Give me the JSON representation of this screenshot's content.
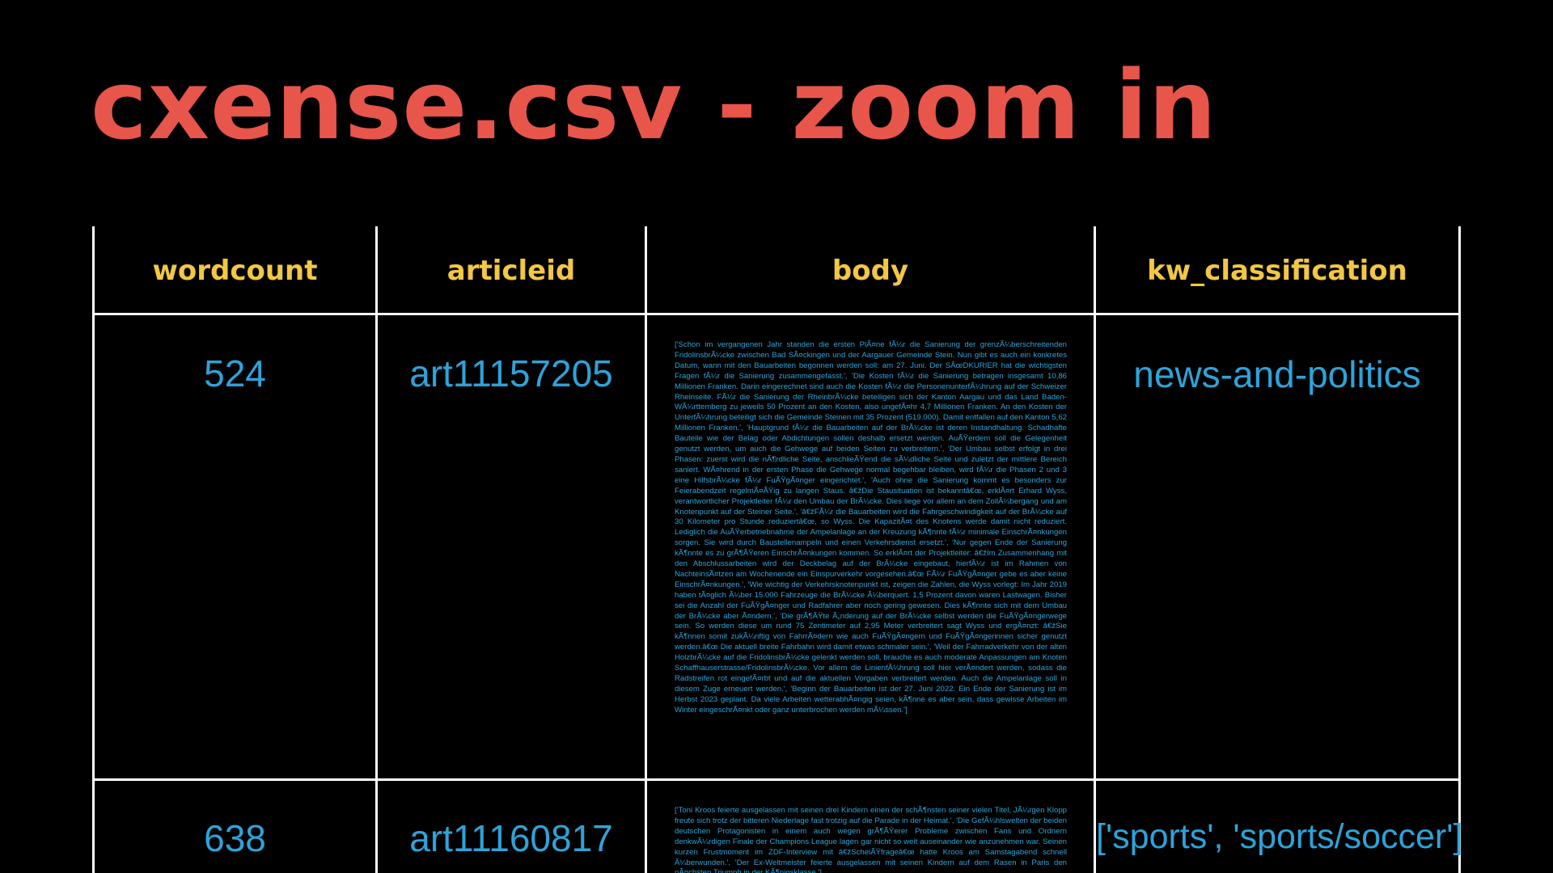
{
  "slide": {
    "title": "cxense.csv - zoom in"
  },
  "colors": {
    "background": "#000000",
    "title": "#e8554a",
    "header": "#f2c744",
    "cell_text": "#2ea3d9",
    "grid": "#ffffff"
  },
  "table": {
    "headers": {
      "wordcount": "wordcount",
      "articleid": "articleid",
      "body": "body",
      "kw_classification": "kw_classification"
    },
    "rows": [
      {
        "wordcount": "524",
        "articleid": "art11157205",
        "body": "['Schon im vergangenen Jahr standen die ersten PlÃ¤ne fÃ¼r die Sanierung der grenzÃ¼berschreitenden FridolinsbrÃ¼cke zwischen Bad SÃ¤ckingen und der Aargauer Gemeinde Stein. Nun gibt es auch ein konkretes Datum, wann mit den Bauarbeiten begonnen werden soll: am 27. Juni. Der SÃœDKURIER hat die wichtigsten Fragen fÃ¼r die Sanierung zusammengefasst.', 'Die Kosten fÃ¼r die Sanierung betragen insgesamt 10,86 Millionen Franken. Darin eingerechnet sind auch die Kosten fÃ¼r die PersonenunterfÃ¼hrung auf der Schweizer Rheinseite. FÃ¼r die Sanierung der RheinbrÃ¼cke beteiligen sich der Kanton Aargau und das Land Baden-WÃ¼rttemberg zu jeweils 50 Prozent an den Kosten, also ungefÃ¤hr 4,7 Millionen Franken. An den Kosten der UnterfÃ¼hrung beteiligt sich die Gemeinde Steinen mit 35 Prozent (519.000). Damit entfallen auf den Kanton 5,62 Millionen Franken.', 'Hauptgrund fÃ¼r die Bauarbeiten auf der BrÃ¼cke ist deren Instandhaltung. Schadhafte Bauteile wie der Belag oder Abdichtungen sollen deshalb ersetzt werden. AuÃŸerdem soll die Gelegenheit genutzt werden, um auch die Gehwege auf beiden Seiten zu verbreitern.', 'Der Umbau selbst erfolgt in drei Phasen: zuerst wird die nÃ¶rdliche Seite, anschlieÃŸend die sÃ¼dliche Seite und zuletzt der mittlere Bereich saniert. WÃ¤hrend in der ersten Phase die Gehwege normal begehbar bleiben, wird fÃ¼r die Phasen 2 und 3 eine HilfsbrÃ¼cke fÃ¼r FuÃŸgÃ¤nger eingerichtet.', 'Auch ohne die Sanierung kommt es besonders zur Feierabendzeit regelmÃ¤ÃŸig zu langen Staus. â€žDie Stausituation ist bekanntâ€œ, erklÃ¤rt Erhard Wyss, verantwortlicher Projektleiter fÃ¼r den Umbau der BrÃ¼cke. Dies liege vor allem an dem ZollÃ¼bergang und am Knotenpunkt auf der Steiner Seite.', 'â€žFÃ¼r die Bauarbeiten wird die Fahrgeschwindigkeit auf der BrÃ¼cke auf 30 Kilometer pro Stunde reduziertâ€œ, so Wyss. Die KapazitÃ¤t des Knotens werde damit nicht reduziert. Lediglich die AuÃŸerbetriebnahme der Ampelanlage an der Kreuzung kÃ¶nnte fÃ¼r minimale EinschrÃ¤nkungen sorgen. Sie wird durch Baustellenampeln und einen Verkehrsdienst ersetzt.', 'Nur gegen Ende der Sanierung kÃ¶nnte es zu grÃ¶ÃŸeren EinschrÃ¤nkungen kommen. So erklÃ¤rt der Projektleiter: â€žIm Zusammenhang mit den Abschlussarbeiten wird der Deckbelag auf der BrÃ¼cke eingebaut, hierfÃ¼r ist im Rahmen von NachteinsÃ¤tzen am Wochenende ein Einspurverkehr vorgesehen.â€œ FÃ¼r FuÃŸgÃ¤nger gebe es aber keine EinschrÃ¤nkungen.', 'Wie wichtig der Verkehrsknotenpunkt ist, zeigen die Zahlen, die Wyss vorlegt: Im Jahr 2019 haben tÃ¤glich Ã¼ber 15.000 Fahrzeuge die BrÃ¼cke Ã¼berquert. 1,5 Prozent davon waren Lastwagen. Bisher sei die Anzahl der FuÃŸgÃ¤nger und Radfahrer aber noch gering gewesen. Dies kÃ¶nnte sich mit dem Umbau der BrÃ¼cke aber Ã¤ndern.', 'Die grÃ¶ÃŸte Ã„nderung auf der BrÃ¼cke selbst werden die FuÃŸgÃ¤ngerwege sein. So werden diese um rund 75 Zentimeter auf 2,95 Meter verbreitert sagt Wyss und ergÃ¤nzt: â€žSie kÃ¶nnen somit zukÃ¼nftig von FahrrÃ¤dern wie auch FuÃŸgÃ¤ngern und FuÃŸgÃ¤ngerinnen sicher genutzt werden.â€œ Die aktuell breite Fahrbahn wird damit etwas schmaler sein.', 'Weil der Fahrradverkehr von der alten HolzbrÃ¼cke auf die FridolinsbrÃ¼cke gelenkt werden soll, brauche es auch moderate Anpassungen am Knoten Schaffhauserstrasse/FridolinsbrÃ¼cke. Vor allem die LinienfÃ¼hrung soll hier verÃ¤ndert werden, sodass die Radstreifen rot eingefÃ¤rbt und auf die aktuellen Vorgaben verbreitert werden. Auch die Ampelanlage soll in diesem Zuge erneuert werden.', 'Beginn der Bauarbeiten ist der 27. Juni 2022. Ein Ende der Sanierung ist im Herbst 2023 geplant. Da viele Arbeiten wetterabhÃ¤ngig seien, kÃ¶nne es aber sein, dass gewisse Arbeiten im Winter eingeschrÃ¤nkt oder ganz unterbrochen werden mÃ¼ssen.']",
        "kw_classification": "news-and-politics"
      },
      {
        "wordcount": "638",
        "articleid": "art11160817",
        "body": "['Toni Kroos feierte ausgelassen mit seinen drei Kindern einen der schÃ¶nsten seiner vielen Titel, JÃ¼rgen Klopp freute sich trotz der bitteren Niederlage fast trotzig auf die Parade in der Heimat.', 'Die GefÃ¼hlswelten der beiden deutschen Protagonisten in einem auch wegen grÃ¶ÃŸerer Probleme zwischen Fans und Ordnern denkwÃ¼rdigen Finale der Champions League lagen gar nicht so weit auseinander wie anzunehmen war. Seinen kurzen Frustmoment im ZDF-Interview mit â€žScheiÃŸfrageâ€œ hatte Kroos am Samstagabend schnell Ã¼berwunden.', 'Der Ex-Weltmeister feierte ausgelassen mit seinen Kindern auf dem Rasen in Paris den nÃ¤chsten Triumph in der KÃ¶nigsklasse.']",
        "kw_classification": "['sports', 'sports/soccer']"
      }
    ]
  }
}
